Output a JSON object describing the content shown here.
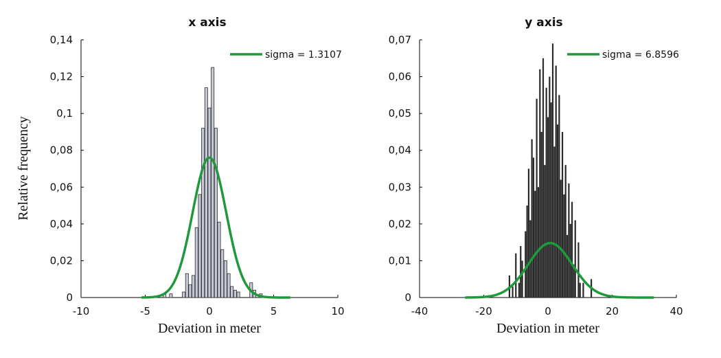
{
  "figure": {
    "shared_ylabel": "Relative frequency",
    "fit_color": "#1e9a3a",
    "bar_fill_left": "#c5c9d6",
    "bar_stroke": "#2a2a2a",
    "bar_fill_right": "#2a2a2a"
  },
  "chart_data": [
    {
      "type": "bar",
      "title": "x axis",
      "xlabel": "Deviation in meter",
      "ylabel": "Relative frequency",
      "xlim": [
        -10,
        10
      ],
      "ylim": [
        0,
        0.14
      ],
      "xticks": [
        -10,
        -5,
        0,
        5,
        10
      ],
      "xtick_labels": [
        "-10",
        "-5",
        "0",
        "5",
        "10"
      ],
      "yticks": [
        0,
        0.02,
        0.04,
        0.06,
        0.08,
        0.1,
        0.12,
        0.14
      ],
      "ytick_labels": [
        "0",
        "0,02",
        "0,04",
        "0,06",
        "0,08",
        "0,1",
        "0,12",
        "0,14"
      ],
      "bin_width": 0.25,
      "bins": [
        {
          "x": -3.5,
          "y": 0.002
        },
        {
          "x": -3.0,
          "y": 0.002
        },
        {
          "x": -2.0,
          "y": 0.003
        },
        {
          "x": -1.75,
          "y": 0.013
        },
        {
          "x": -1.5,
          "y": 0.007
        },
        {
          "x": -1.25,
          "y": 0.012
        },
        {
          "x": -1.0,
          "y": 0.038
        },
        {
          "x": -0.75,
          "y": 0.056
        },
        {
          "x": -0.5,
          "y": 0.092
        },
        {
          "x": -0.25,
          "y": 0.114
        },
        {
          "x": 0.0,
          "y": 0.103
        },
        {
          "x": 0.25,
          "y": 0.125
        },
        {
          "x": 0.5,
          "y": 0.092
        },
        {
          "x": 0.75,
          "y": 0.041
        },
        {
          "x": 1.0,
          "y": 0.026
        },
        {
          "x": 1.25,
          "y": 0.02
        },
        {
          "x": 1.5,
          "y": 0.013
        },
        {
          "x": 1.75,
          "y": 0.006
        },
        {
          "x": 2.0,
          "y": 0.004
        },
        {
          "x": 2.25,
          "y": 0.003
        },
        {
          "x": 3.25,
          "y": 0.008
        },
        {
          "x": 3.5,
          "y": 0.004
        },
        {
          "x": 4.0,
          "y": 0.002
        }
      ],
      "fit": {
        "mu": 0.0,
        "sigma": 1.3107,
        "peak": 0.076,
        "x_range": [
          -5.3,
          6.3
        ]
      },
      "legend": {
        "label": "sigma = 1.3107",
        "position": "top-right"
      }
    },
    {
      "type": "bar",
      "title": "y axis",
      "xlabel": "Deviation in meter",
      "ylabel": "",
      "xlim": [
        -40,
        40
      ],
      "ylim": [
        0,
        0.07
      ],
      "xticks": [
        -40,
        -20,
        0,
        20,
        40
      ],
      "xtick_labels": [
        "-40",
        "-20",
        "0",
        "20",
        "40"
      ],
      "yticks": [
        0,
        0.01,
        0.02,
        0.03,
        0.04,
        0.05,
        0.06,
        0.07
      ],
      "ytick_labels": [
        "0",
        "0,01",
        "0,02",
        "0,03",
        "0,04",
        "0,05",
        "0,06",
        "0,07"
      ],
      "bin_width": 0.25,
      "bins": [
        {
          "x": -12.0,
          "y": 0.006
        },
        {
          "x": -11.0,
          "y": 0.003
        },
        {
          "x": -10.0,
          "y": 0.012
        },
        {
          "x": -9.0,
          "y": 0.004
        },
        {
          "x": -8.5,
          "y": 0.014
        },
        {
          "x": -8.0,
          "y": 0.01
        },
        {
          "x": -7.0,
          "y": 0.018
        },
        {
          "x": -6.5,
          "y": 0.025
        },
        {
          "x": -6.0,
          "y": 0.035
        },
        {
          "x": -5.5,
          "y": 0.021
        },
        {
          "x": -5.0,
          "y": 0.043
        },
        {
          "x": -4.5,
          "y": 0.038
        },
        {
          "x": -4.0,
          "y": 0.029
        },
        {
          "x": -3.5,
          "y": 0.054
        },
        {
          "x": -3.0,
          "y": 0.03
        },
        {
          "x": -2.5,
          "y": 0.062
        },
        {
          "x": -2.0,
          "y": 0.045
        },
        {
          "x": -1.5,
          "y": 0.065
        },
        {
          "x": -1.0,
          "y": 0.036
        },
        {
          "x": -0.5,
          "y": 0.057
        },
        {
          "x": 0.0,
          "y": 0.049
        },
        {
          "x": 0.5,
          "y": 0.06
        },
        {
          "x": 1.0,
          "y": 0.053
        },
        {
          "x": 1.5,
          "y": 0.069
        },
        {
          "x": 2.0,
          "y": 0.041
        },
        {
          "x": 2.5,
          "y": 0.063
        },
        {
          "x": 3.0,
          "y": 0.047
        },
        {
          "x": 3.5,
          "y": 0.055
        },
        {
          "x": 4.0,
          "y": 0.032
        },
        {
          "x": 4.5,
          "y": 0.045
        },
        {
          "x": 5.0,
          "y": 0.028
        },
        {
          "x": 5.5,
          "y": 0.036
        },
        {
          "x": 6.0,
          "y": 0.017
        },
        {
          "x": 6.5,
          "y": 0.031
        },
        {
          "x": 7.0,
          "y": 0.02
        },
        {
          "x": 7.5,
          "y": 0.026
        },
        {
          "x": 8.0,
          "y": 0.009
        },
        {
          "x": 8.5,
          "y": 0.021
        },
        {
          "x": 9.5,
          "y": 0.015
        },
        {
          "x": 10.0,
          "y": 0.004
        },
        {
          "x": 11.0,
          "y": 0.004
        },
        {
          "x": 13.5,
          "y": 0.005
        }
      ],
      "fit": {
        "mu": 0.7,
        "sigma": 6.8596,
        "peak": 0.0148,
        "x_range": [
          -25.8,
          33.0
        ]
      },
      "legend": {
        "label": "sigma = 6.8596",
        "position": "top-right"
      }
    }
  ]
}
